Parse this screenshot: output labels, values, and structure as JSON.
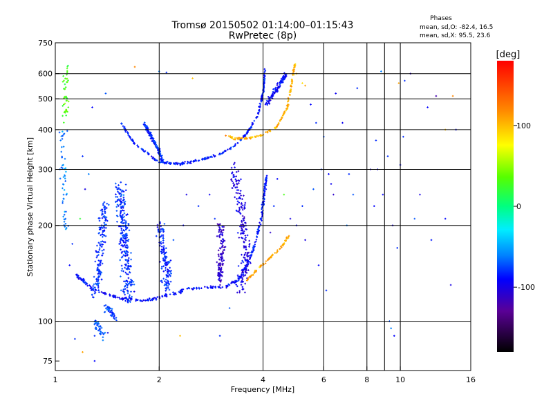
{
  "chart_data": {
    "type": "scatter",
    "title": "Tromsø 20150502 01:14:00–01:15:43",
    "subtitle": "RwPretec (8p)",
    "xlabel": "Frequency [MHz]",
    "ylabel": "Stationary phase Virtual Height [km]",
    "x_scale": "log",
    "y_scale": "log",
    "xlim": [
      1,
      16
    ],
    "ylim": [
      70,
      750
    ],
    "x_ticks": [
      {
        "v": 1,
        "label": "1"
      },
      {
        "v": 2,
        "label": "2"
      },
      {
        "v": 4,
        "label": "4"
      },
      {
        "v": 6,
        "label": "6"
      },
      {
        "v": 8,
        "label": "8"
      },
      {
        "v": 10,
        "label": "10"
      },
      {
        "v": 16,
        "label": "16"
      }
    ],
    "x_grid": [
      2,
      4,
      6,
      8,
      9,
      10
    ],
    "y_ticks": [
      {
        "v": 75,
        "label": "75"
      },
      {
        "v": 100,
        "label": "100"
      },
      {
        "v": 200,
        "label": "200"
      },
      {
        "v": 300,
        "label": "300"
      },
      {
        "v": 400,
        "label": "400"
      },
      {
        "v": 500,
        "label": "500"
      },
      {
        "v": 600,
        "label": "600"
      },
      {
        "v": 750,
        "label": "750"
      }
    ],
    "y_grid": [
      100,
      200,
      300,
      400,
      500,
      600
    ],
    "grid": true,
    "phases": {
      "title": "Phases",
      "line_o": "mean, sd,O:  -82.4,  16.5",
      "line_x": "mean, sd,X:  95.5,  23.6"
    },
    "colorbar": {
      "label": "[deg]",
      "range": [
        -180,
        180
      ],
      "ticks": [
        {
          "v": 100,
          "label": "100"
        },
        {
          "v": 0,
          "label": "0"
        },
        {
          "v": -100,
          "label": "-100"
        }
      ]
    },
    "traces": [
      {
        "phase": -85,
        "spread": 0.012,
        "n": 280,
        "curve": [
          [
            1.55,
            420
          ],
          [
            1.7,
            360
          ],
          [
            1.9,
            330
          ],
          [
            2.0,
            315
          ],
          [
            2.3,
            312
          ],
          [
            2.6,
            320
          ],
          [
            3.0,
            335
          ],
          [
            3.3,
            355
          ],
          [
            3.6,
            390
          ],
          [
            3.85,
            440
          ],
          [
            4.0,
            520
          ],
          [
            4.05,
            620
          ]
        ]
      },
      {
        "phase": -80,
        "spread": 0.022,
        "n": 130,
        "curve": [
          [
            1.8,
            420
          ],
          [
            1.9,
            380
          ],
          [
            2.0,
            340
          ],
          [
            2.05,
            315
          ]
        ]
      },
      {
        "phase": 105,
        "spread": 0.012,
        "n": 140,
        "curve": [
          [
            3.1,
            385
          ],
          [
            3.3,
            375
          ],
          [
            3.6,
            375
          ],
          [
            4.0,
            385
          ],
          [
            4.4,
            410
          ],
          [
            4.7,
            470
          ],
          [
            4.85,
            560
          ],
          [
            4.95,
            650
          ]
        ]
      },
      {
        "phase": -88,
        "spread": 0.015,
        "n": 360,
        "curve": [
          [
            1.15,
            140
          ],
          [
            1.3,
            125
          ],
          [
            1.55,
            118
          ],
          [
            1.8,
            116
          ],
          [
            2.1,
            120
          ],
          [
            2.4,
            126
          ],
          [
            2.8,
            128
          ],
          [
            3.1,
            128
          ],
          [
            3.4,
            135
          ],
          [
            3.6,
            150
          ],
          [
            3.8,
            175
          ],
          [
            3.95,
            210
          ],
          [
            4.05,
            260
          ],
          [
            4.1,
            290
          ]
        ]
      },
      {
        "phase": -80,
        "spread": 0.09,
        "n": 280,
        "curve": [
          [
            1.55,
            270
          ],
          [
            1.55,
            230
          ],
          [
            1.58,
            190
          ],
          [
            1.6,
            160
          ],
          [
            1.63,
            135
          ],
          [
            1.62,
            115
          ]
        ]
      },
      {
        "phase": -80,
        "spread": 0.07,
        "n": 160,
        "curve": [
          [
            1.4,
            240
          ],
          [
            1.38,
            200
          ],
          [
            1.35,
            165
          ],
          [
            1.33,
            135
          ],
          [
            1.3,
            120
          ]
        ]
      },
      {
        "phase": -82,
        "spread": 0.07,
        "n": 140,
        "curve": [
          [
            2.0,
            200
          ],
          [
            2.05,
            170
          ],
          [
            2.1,
            145
          ],
          [
            2.1,
            125
          ]
        ]
      },
      {
        "phase": -100,
        "spread": 0.08,
        "n": 200,
        "curve": [
          [
            3.3,
            300
          ],
          [
            3.4,
            250
          ],
          [
            3.5,
            210
          ],
          [
            3.5,
            180
          ],
          [
            3.6,
            160
          ],
          [
            3.5,
            140
          ],
          [
            3.4,
            125
          ]
        ]
      },
      {
        "phase": -110,
        "spread": 0.05,
        "n": 120,
        "curve": [
          [
            3.0,
            200
          ],
          [
            3.05,
            170
          ],
          [
            3.0,
            150
          ],
          [
            3.0,
            135
          ]
        ]
      },
      {
        "phase": 110,
        "spread": 0.012,
        "n": 70,
        "curve": [
          [
            3.6,
            135
          ],
          [
            3.85,
            145
          ],
          [
            4.1,
            155
          ],
          [
            4.5,
            170
          ],
          [
            4.75,
            185
          ]
        ]
      },
      {
        "phase": -90,
        "spread": 0.03,
        "n": 110,
        "curve": [
          [
            4.7,
            600
          ],
          [
            4.5,
            560
          ],
          [
            4.3,
            520
          ],
          [
            4.1,
            480
          ]
        ]
      },
      {
        "phase": 30,
        "spread": 0.05,
        "n": 45,
        "curve": [
          [
            1.07,
            640
          ],
          [
            1.07,
            560
          ],
          [
            1.07,
            480
          ],
          [
            1.07,
            420
          ]
        ]
      },
      {
        "phase": -60,
        "spread": 0.06,
        "n": 55,
        "curve": [
          [
            1.05,
            400
          ],
          [
            1.05,
            300
          ],
          [
            1.07,
            230
          ],
          [
            1.08,
            190
          ]
        ]
      },
      {
        "phase": -70,
        "spread": 0.05,
        "n": 35,
        "curve": [
          [
            1.3,
            100
          ],
          [
            1.35,
            94
          ],
          [
            1.38,
            90
          ]
        ]
      },
      {
        "phase": -75,
        "spread": 0.04,
        "n": 40,
        "curve": [
          [
            1.4,
            110
          ],
          [
            1.45,
            108
          ],
          [
            1.48,
            104
          ]
        ]
      }
    ],
    "scatter": [
      [
        6.2,
        290,
        -90
      ],
      [
        6.3,
        270,
        -95
      ],
      [
        6.4,
        250,
        -110
      ],
      [
        7.1,
        290,
        -80
      ],
      [
        7.3,
        250,
        -70
      ],
      [
        7.0,
        200,
        -60
      ],
      [
        8.2,
        300,
        -100
      ],
      [
        8.4,
        230,
        -90
      ],
      [
        8.6,
        300,
        -95
      ],
      [
        8.9,
        250,
        -90
      ],
      [
        9.2,
        330,
        -80
      ],
      [
        9.5,
        200,
        -100
      ],
      [
        9.3,
        100,
        -70
      ],
      [
        9.4,
        95,
        -60
      ],
      [
        9.6,
        90,
        -90
      ],
      [
        9.8,
        170,
        -80
      ],
      [
        10.3,
        570,
        -80
      ],
      [
        10.7,
        600,
        -110
      ],
      [
        11.0,
        210,
        -70
      ],
      [
        12.0,
        470,
        -90
      ],
      [
        12.7,
        510,
        -120
      ],
      [
        13.5,
        400,
        100
      ],
      [
        14.2,
        510,
        120
      ],
      [
        14.5,
        400,
        -90
      ],
      [
        14.0,
        130,
        -100
      ],
      [
        13.5,
        210,
        -90
      ],
      [
        12.3,
        180,
        -85
      ],
      [
        11.4,
        250,
        -100
      ],
      [
        5.0,
        600,
        100
      ],
      [
        5.2,
        560,
        90
      ],
      [
        5.3,
        550,
        110
      ],
      [
        5.5,
        480,
        -90
      ],
      [
        5.7,
        420,
        -80
      ],
      [
        6.0,
        380,
        -70
      ],
      [
        6.5,
        520,
        -95
      ],
      [
        7.5,
        540,
        -80
      ],
      [
        8.8,
        610,
        -60
      ],
      [
        9.0,
        600,
        100
      ],
      [
        8.5,
        370,
        -80
      ],
      [
        6.8,
        420,
        -95
      ],
      [
        5.9,
        300,
        -80
      ],
      [
        5.6,
        260,
        -70
      ],
      [
        5.2,
        230,
        -80
      ],
      [
        5.0,
        200,
        -90
      ],
      [
        5.3,
        180,
        -100
      ],
      [
        5.8,
        150,
        -90
      ],
      [
        2.1,
        605,
        -80
      ],
      [
        2.0,
        610,
        -60
      ],
      [
        2.5,
        580,
        100
      ],
      [
        1.7,
        630,
        120
      ],
      [
        1.4,
        520,
        -70
      ],
      [
        1.28,
        470,
        -90
      ],
      [
        2.4,
        250,
        -100
      ],
      [
        2.8,
        250,
        -95
      ],
      [
        2.9,
        210,
        -80
      ],
      [
        2.6,
        230,
        -80
      ],
      [
        2.2,
        180,
        -70
      ],
      [
        2.35,
        200,
        -90
      ],
      [
        1.2,
        330,
        -80
      ],
      [
        1.25,
        290,
        -60
      ],
      [
        1.22,
        260,
        -100
      ],
      [
        1.18,
        210,
        20
      ],
      [
        1.1,
        150,
        -90
      ],
      [
        1.12,
        175,
        -80
      ],
      [
        1.3,
        90,
        -80
      ],
      [
        1.35,
        93,
        -70
      ],
      [
        1.2,
        80,
        110
      ],
      [
        1.3,
        75,
        -90
      ],
      [
        1.42,
        92,
        -100
      ],
      [
        1.14,
        88,
        -80
      ],
      [
        4.6,
        250,
        30
      ],
      [
        4.3,
        230,
        -80
      ],
      [
        4.8,
        210,
        -100
      ],
      [
        4.4,
        280,
        -90
      ],
      [
        4.2,
        190,
        -110
      ],
      [
        3.2,
        110,
        -70
      ],
      [
        3.0,
        90,
        -80
      ],
      [
        2.3,
        90,
        100
      ],
      [
        9.9,
        560,
        110
      ],
      [
        10.2,
        380,
        -80
      ],
      [
        10.0,
        310,
        -90
      ],
      [
        6.1,
        125,
        -80
      ]
    ]
  }
}
